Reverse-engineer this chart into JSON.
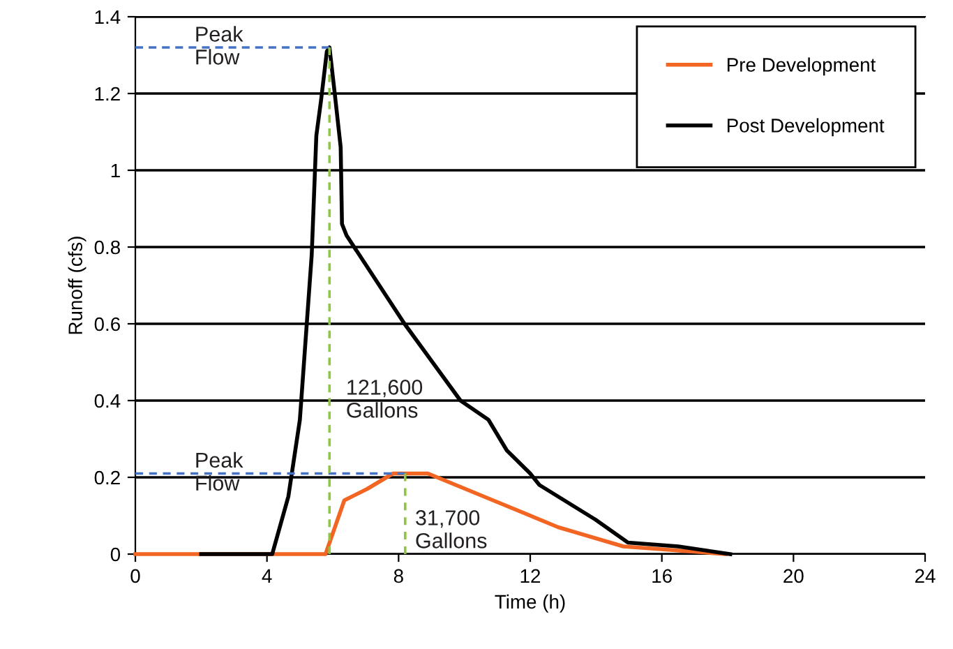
{
  "chart_data": {
    "type": "line",
    "xlabel": "Time (h)",
    "ylabel": "Runoff (cfs)",
    "xlim": [
      0,
      24
    ],
    "xticks": [
      0,
      4,
      8,
      12,
      16,
      20,
      24
    ],
    "ylim": [
      0,
      1.4
    ],
    "yticks": [
      0,
      0.2,
      0.4,
      0.6,
      0.8,
      1,
      1.2,
      1.4
    ],
    "grid": "y",
    "legend": "top right",
    "marker": "none",
    "line_style": "solid",
    "series": [
      {
        "name": "Pre Development",
        "color": "#f26522",
        "x": [
          0,
          5.78,
          6.35,
          7.05,
          7.83,
          8.89,
          10.59,
          12.85,
          14.83,
          17.94
        ],
        "values": [
          0,
          0,
          0.14,
          0.17,
          0.21,
          0.21,
          0.15,
          0.07,
          0.02,
          0
        ]
      },
      {
        "name": "Post Development",
        "color": "#000000",
        "x": [
          2,
          4.16,
          4.65,
          5.0,
          5.36,
          5.5,
          5.64,
          5.82,
          5.9,
          6.06,
          6.24,
          6.28,
          6.42,
          8.18,
          9.88,
          10.73,
          11.29,
          12.0,
          12.28,
          13.98,
          14.97,
          16.5,
          18.08
        ],
        "values": [
          0,
          0,
          0.15,
          0.35,
          0.78,
          1.09,
          1.18,
          1.31,
          1.32,
          1.2,
          1.06,
          0.86,
          0.83,
          0.6,
          0.4,
          0.35,
          0.27,
          0.21,
          0.18,
          0.09,
          0.03,
          0.02,
          0
        ]
      },
      {
        "color": "#4472c4",
        "line_style": "dashed",
        "x": [
          0,
          5.9
        ],
        "values": [
          1.32,
          1.32
        ]
      },
      {
        "color": "#4472c4",
        "line_style": "dashed",
        "x": [
          0,
          8.2
        ],
        "values": [
          0.21,
          0.21
        ]
      },
      {
        "color": "#8dc63f",
        "line_style": "dashed",
        "x": [
          5.9,
          5.9
        ],
        "values": [
          0,
          1.32
        ]
      },
      {
        "color": "#8dc63f",
        "line_style": "dashed",
        "x": [
          8.2,
          8.2
        ],
        "values": [
          0,
          0.21
        ]
      }
    ],
    "annotations": [
      {
        "text": "Peak\nFlow",
        "x": 1.8,
        "y": 1.32
      },
      "121,600\nGallons",
      {
        "text": "Peak\nFlow",
        "x": 1.8,
        "y": 0.21
      },
      "31,700\nGallons"
    ]
  }
}
